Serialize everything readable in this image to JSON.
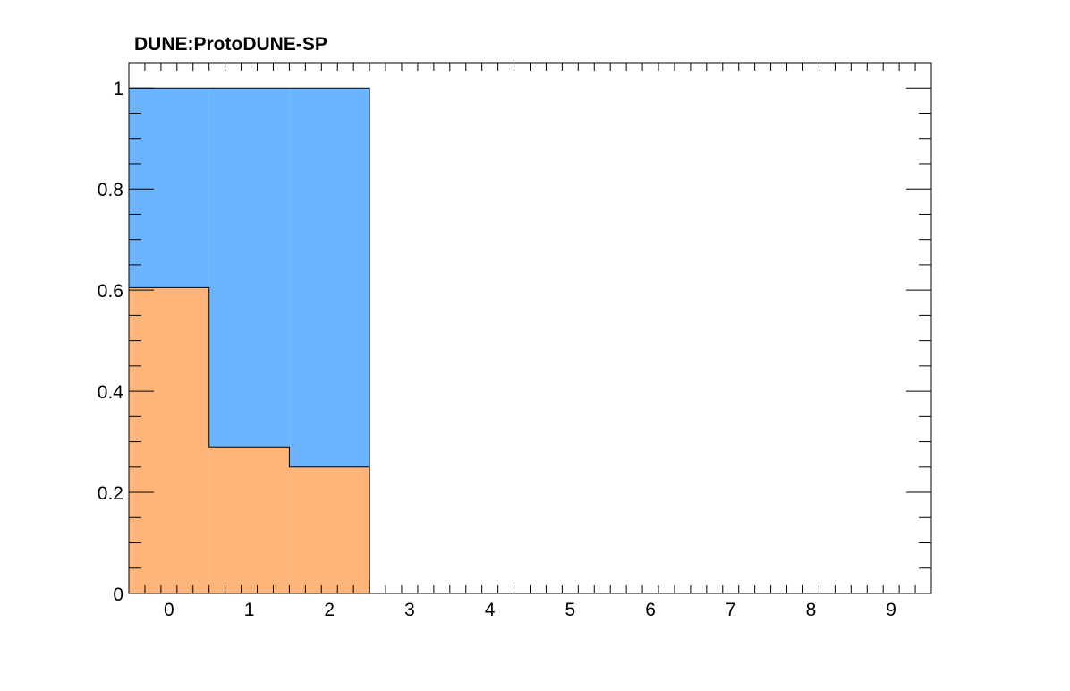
{
  "chart_data": {
    "type": "bar",
    "stacked": true,
    "histogram": true,
    "title": "DUNE:ProtoDUNE-SP",
    "xlabel": "",
    "ylabel": "",
    "xlim": [
      -0.5,
      9.5
    ],
    "ylim": [
      0,
      1.05
    ],
    "x_ticks": [
      "0",
      "1",
      "2",
      "3",
      "4",
      "5",
      "6",
      "7",
      "8",
      "9"
    ],
    "y_ticks": [
      "0",
      "0.2",
      "0.4",
      "0.6",
      "0.8",
      "1"
    ],
    "grid": false,
    "legend": "none",
    "bins": [
      0,
      1,
      2
    ],
    "series": [
      {
        "values": [
          0.605,
          0.29,
          0.25
        ],
        "color": "#ffb479"
      },
      {
        "values": [
          0.395,
          0.71,
          0.75
        ],
        "color": "#6cb4ff"
      }
    ]
  }
}
